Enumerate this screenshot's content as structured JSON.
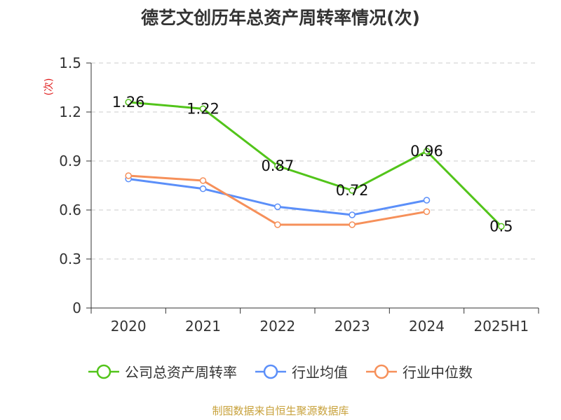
{
  "title": "德艺文创历年总资产周转率情况(次)",
  "source": "制图数据来自恒生聚源数据库",
  "chart_data": {
    "type": "line",
    "title": "德艺文创历年总资产周转率情况(次)",
    "ylabel": "(次)",
    "categories": [
      "2020",
      "2021",
      "2022",
      "2023",
      "2024",
      "2025H1"
    ],
    "ylim": [
      0,
      1.5
    ],
    "yticks": [
      "0",
      "0.3",
      "0.6",
      "0.9",
      "1.2",
      "1.5"
    ],
    "grid": true,
    "legend_position": "bottom",
    "series": [
      {
        "name": "公司总资产周转率",
        "color": "#52c41a",
        "values": [
          1.26,
          1.22,
          0.87,
          0.72,
          0.96,
          0.5
        ],
        "labels": [
          "1.26",
          "1.22",
          "0.87",
          "0.72",
          "0.96",
          "0.5"
        ]
      },
      {
        "name": "行业均值",
        "color": "#5b8ff9",
        "values": [
          0.79,
          0.73,
          0.62,
          0.57,
          0.66,
          null
        ]
      },
      {
        "name": "行业中位数",
        "color": "#f6905a",
        "values": [
          0.81,
          0.78,
          0.51,
          0.51,
          0.59,
          null
        ]
      }
    ]
  }
}
